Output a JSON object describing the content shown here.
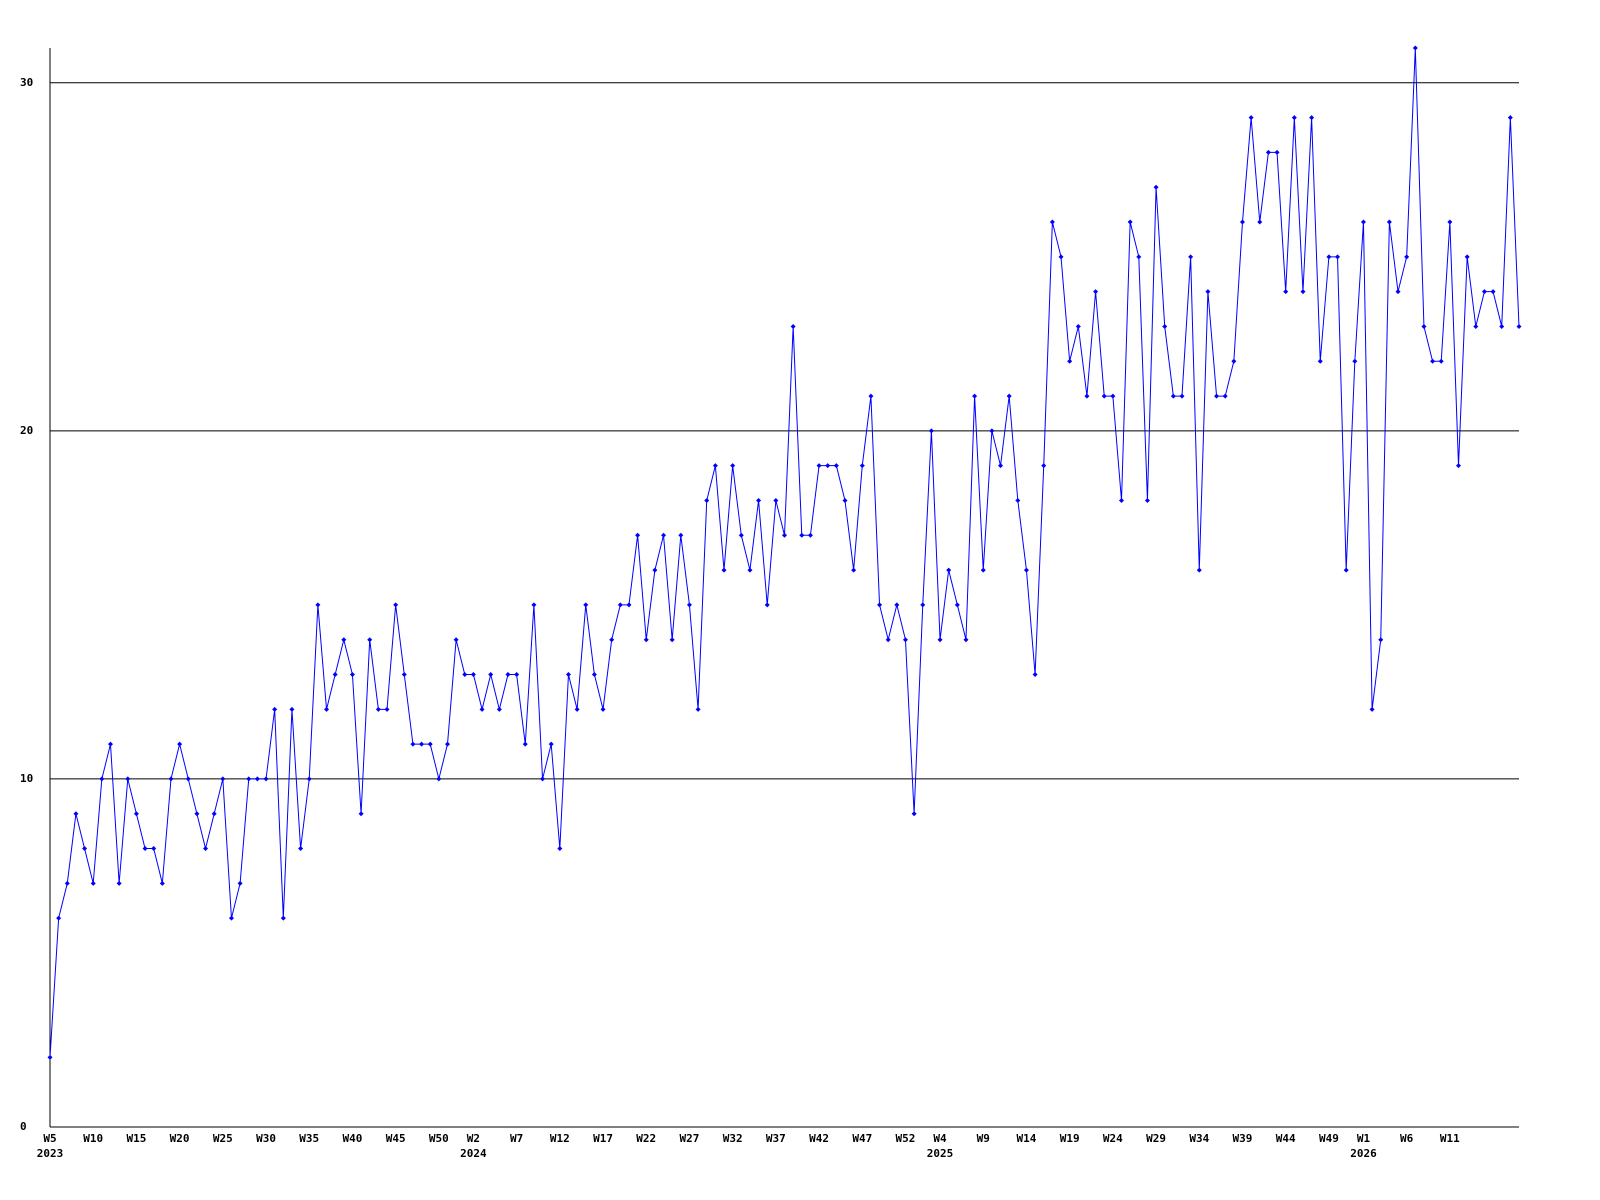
{
  "chart_data": {
    "type": "line",
    "categories": [
      [
        "W5",
        "2023"
      ],
      null,
      null,
      null,
      null,
      "W10",
      null,
      null,
      null,
      null,
      "W15",
      null,
      null,
      null,
      null,
      "W20",
      null,
      null,
      null,
      null,
      "W25",
      null,
      null,
      null,
      null,
      "W30",
      null,
      null,
      null,
      null,
      "W35",
      null,
      null,
      null,
      null,
      "W40",
      null,
      null,
      null,
      null,
      "W45",
      null,
      null,
      null,
      null,
      "W50",
      null,
      null,
      null,
      [
        "W2",
        "2024"
      ],
      null,
      null,
      null,
      null,
      "W7",
      null,
      null,
      null,
      null,
      "W12",
      null,
      null,
      null,
      null,
      "W17",
      null,
      null,
      null,
      null,
      "W22",
      null,
      null,
      null,
      null,
      "W27",
      null,
      null,
      null,
      null,
      "W32",
      null,
      null,
      null,
      null,
      "W37",
      null,
      null,
      null,
      null,
      "W42",
      null,
      null,
      null,
      null,
      "W47",
      null,
      null,
      null,
      null,
      "W52",
      null,
      null,
      null,
      [
        "W4",
        "2025"
      ],
      null,
      null,
      null,
      null,
      "W9",
      null,
      null,
      null,
      null,
      "W14",
      null,
      null,
      null,
      null,
      "W19",
      null,
      null,
      null,
      null,
      "W24",
      null,
      null,
      null,
      null,
      "W29",
      null,
      null,
      null,
      null,
      "W34",
      null,
      null,
      null,
      null,
      "W39",
      null,
      null,
      null,
      null,
      "W44",
      null,
      null,
      null,
      null,
      "W49",
      null,
      null,
      null,
      [
        "W1",
        "2026"
      ],
      null,
      null,
      null,
      null,
      "W6",
      null,
      null,
      null,
      null,
      "W11",
      null,
      null,
      null,
      null,
      null,
      null,
      null,
      null
    ],
    "series": [
      {
        "color": "#0000ff",
        "values": [
          2,
          6,
          7,
          9,
          8,
          7,
          10,
          11,
          7,
          10,
          9,
          8,
          8,
          7,
          10,
          11,
          10,
          9,
          8,
          9,
          10,
          6,
          7,
          10,
          10,
          10,
          12,
          6,
          12,
          8,
          10,
          15,
          12,
          13,
          14,
          13,
          9,
          14,
          12,
          12,
          15,
          13,
          11,
          11,
          11,
          10,
          11,
          14,
          13,
          13,
          12,
          13,
          12,
          13,
          13,
          11,
          15,
          10,
          11,
          8,
          13,
          12,
          15,
          13,
          12,
          14,
          15,
          15,
          17,
          14,
          16,
          17,
          14,
          17,
          15,
          12,
          18,
          19,
          16,
          19,
          17,
          16,
          18,
          15,
          18,
          17,
          23,
          17,
          17,
          19,
          19,
          19,
          18,
          16,
          19,
          21,
          15,
          14,
          15,
          14,
          9,
          15,
          20,
          14,
          16,
          15,
          14,
          21,
          16,
          20,
          19,
          21,
          18,
          16,
          13,
          19,
          26,
          25,
          22,
          23,
          21,
          24,
          21,
          21,
          18,
          26,
          25,
          18,
          27,
          23,
          21,
          21,
          25,
          16,
          24,
          21,
          21,
          22,
          26,
          29,
          26,
          28,
          28,
          24,
          29,
          24,
          29,
          22,
          25,
          25,
          16,
          22,
          26,
          12,
          14,
          26,
          24,
          25,
          31,
          23,
          22,
          22,
          26,
          19,
          25,
          23,
          24,
          24,
          23,
          29,
          23
        ]
      }
    ],
    "ylim": [
      0,
      31
    ],
    "yticks": [
      0,
      10,
      20,
      30
    ],
    "grid": true
  }
}
